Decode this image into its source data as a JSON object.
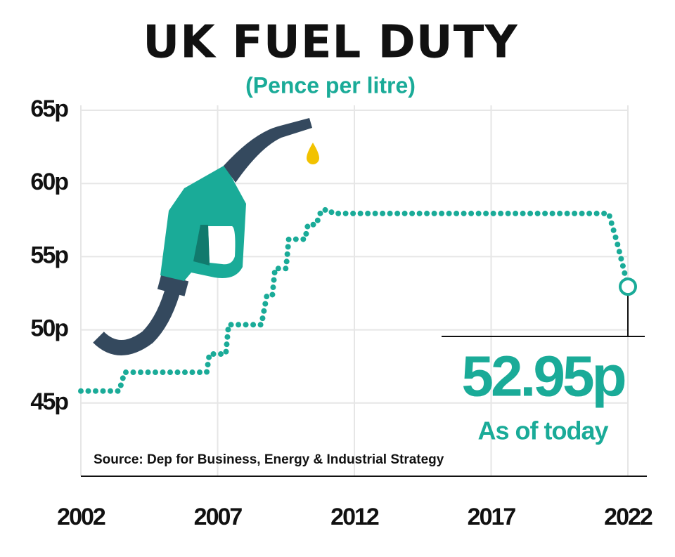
{
  "chart_data": {
    "type": "line",
    "title": "UK FUEL DUTY",
    "subtitle": "(Pence per litre)",
    "source": "Source: Dep for Business, Energy & Industrial Strategy",
    "annotations": [
      "52.95p",
      "As of today"
    ],
    "color": "#1aab98",
    "grid": true,
    "xlim": [
      2002,
      2022
    ],
    "xticks": [
      2002,
      2007,
      2012,
      2017,
      2022
    ],
    "ylim": [
      40,
      65
    ],
    "yticks": [
      {
        "value": 45,
        "label": "45p"
      },
      {
        "value": 50,
        "label": "50p"
      },
      {
        "value": 55,
        "label": "55p"
      },
      {
        "value": 60,
        "label": "60p"
      },
      {
        "value": 65,
        "label": "65p"
      }
    ],
    "x": [
      2002.0,
      2003.4,
      2003.6,
      2006.6,
      2006.7,
      2007.3,
      2007.4,
      2008.6,
      2008.8,
      2009.0,
      2009.1,
      2009.5,
      2009.6,
      2010.2,
      2010.3,
      2010.6,
      2010.8,
      2011.1,
      2011.2,
      2021.3,
      2021.6,
      2021.8,
      2022.0
    ],
    "values": [
      45.82,
      45.82,
      47.1,
      47.1,
      48.35,
      48.35,
      50.35,
      50.35,
      52.35,
      52.35,
      54.19,
      54.19,
      56.19,
      56.19,
      57.19,
      57.19,
      58.19,
      58.19,
      57.95,
      57.95,
      56.0,
      54.5,
      52.95
    ]
  }
}
